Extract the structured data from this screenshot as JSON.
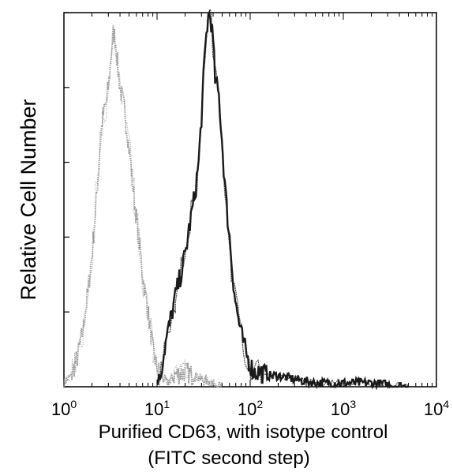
{
  "chart_data": {
    "type": "line",
    "title": "",
    "ylabel": "Relative Cell Number",
    "xlabel": "Purified CD63, with isotype control",
    "xlabel_line2": "(FITC second step)",
    "x_scale": "log",
    "xlim": [
      1,
      10000
    ],
    "ylim": [
      0,
      100
    ],
    "x_ticks": [
      {
        "base": "10",
        "exp": "0",
        "value": 1
      },
      {
        "base": "10",
        "exp": "1",
        "value": 10
      },
      {
        "base": "10",
        "exp": "2",
        "value": 100
      },
      {
        "base": "10",
        "exp": "3",
        "value": 1000
      },
      {
        "base": "10",
        "exp": "4",
        "value": 10000
      }
    ],
    "y_minor_ticks": [
      0,
      20,
      40,
      60,
      80,
      100
    ],
    "grid": false,
    "legend": "none",
    "series": [
      {
        "color": "#9a9a9a",
        "x": [
          1.0,
          1.2,
          1.4,
          1.6,
          1.8,
          2.0,
          2.2,
          2.4,
          2.6,
          2.8,
          3.0,
          3.2,
          3.4,
          3.6,
          3.8,
          4.0,
          4.4,
          4.8,
          5.2,
          5.6,
          6.0,
          6.5,
          7.0,
          8.0,
          9.0,
          10.0,
          11.0,
          13.0,
          15.0,
          20.0,
          30.0,
          50.0
        ],
        "y": [
          1,
          3,
          8,
          15,
          25,
          35,
          48,
          62,
          72,
          75,
          80,
          88,
          95,
          92,
          85,
          80,
          75,
          68,
          60,
          52,
          45,
          38,
          30,
          20,
          10,
          5,
          3,
          1,
          3,
          4,
          2,
          0
        ]
      },
      {
        "color": "#1a1a1a",
        "x": [
          10.0,
          11.0,
          12.0,
          14.0,
          16.0,
          18.0,
          20.0,
          22.0,
          25.0,
          28.0,
          30.0,
          32.0,
          34.0,
          36.0,
          38.0,
          40.0,
          42.0,
          44.0,
          46.0,
          48.0,
          50.0,
          55.0,
          60.0,
          65.0,
          70.0,
          80.0,
          90.0,
          100.0,
          110.0,
          130.0,
          150.0,
          200.0,
          300.0,
          500.0,
          1000.0,
          2000.0,
          5000.0
        ],
        "y": [
          1,
          4,
          10,
          18,
          25,
          30,
          35,
          42,
          50,
          60,
          72,
          85,
          95,
          100,
          98,
          92,
          82,
          80,
          78,
          72,
          65,
          50,
          40,
          30,
          22,
          14,
          9,
          6,
          4,
          4,
          3,
          3,
          2,
          1,
          1,
          1,
          0
        ]
      }
    ]
  }
}
